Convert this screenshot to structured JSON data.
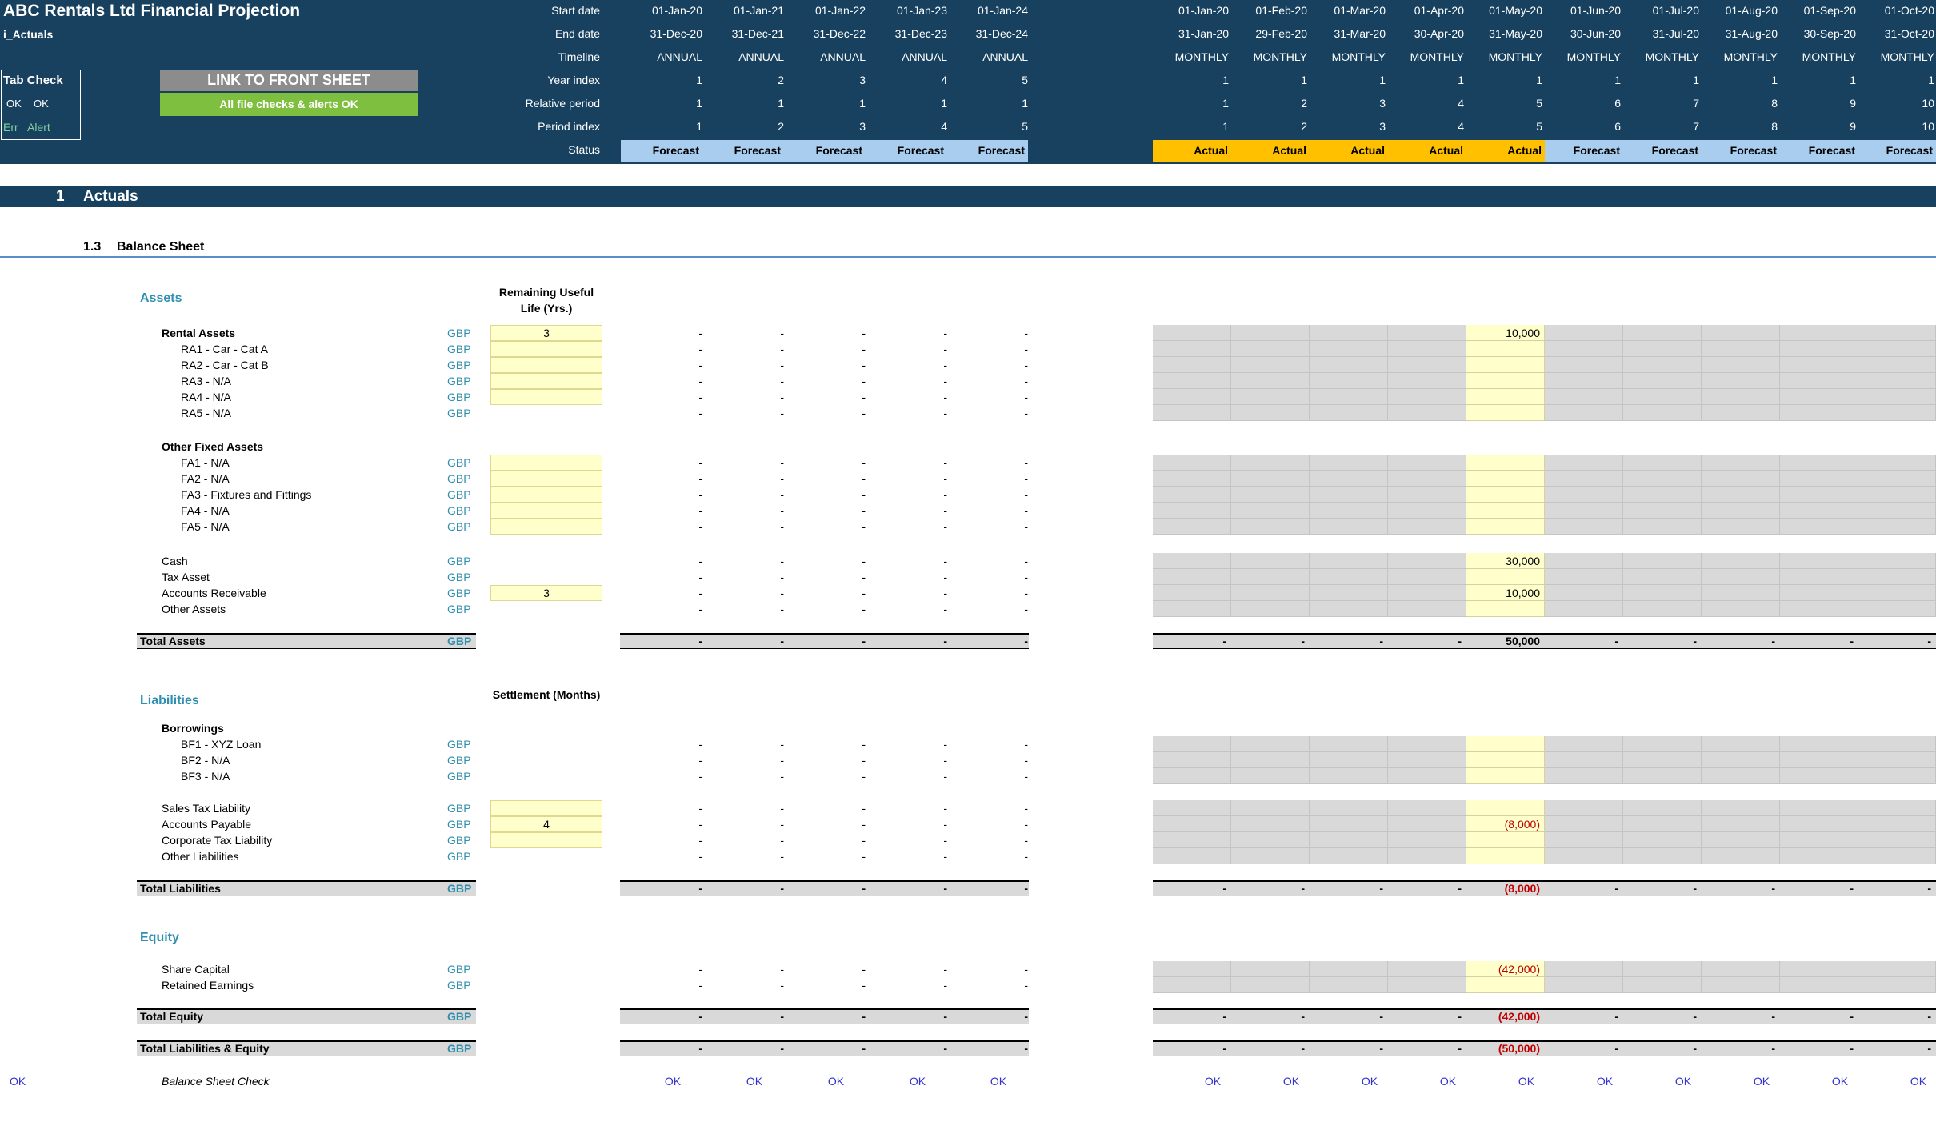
{
  "header": {
    "title": "ABC  Rentals Ltd Financial Projection",
    "sheet": "i_Actuals",
    "tab_check": "Tab Check",
    "tab_check_ok1": "OK",
    "tab_check_ok2": "OK",
    "tab_check_err": "Err",
    "tab_check_alert": "Alert",
    "link_button": "LINK TO FRONT SHEET",
    "checks_button": "All file checks & alerts OK",
    "row_labels": [
      "Start date",
      "End date",
      "Timeline",
      "Year index",
      "Relative period",
      "Period index",
      "Status"
    ]
  },
  "annual": {
    "start": [
      "01-Jan-20",
      "01-Jan-21",
      "01-Jan-22",
      "01-Jan-23",
      "01-Jan-24"
    ],
    "end": [
      "31-Dec-20",
      "31-Dec-21",
      "31-Dec-22",
      "31-Dec-23",
      "31-Dec-24"
    ],
    "timeline": [
      "ANNUAL",
      "ANNUAL",
      "ANNUAL",
      "ANNUAL",
      "ANNUAL"
    ],
    "year_index": [
      "1",
      "2",
      "3",
      "4",
      "5"
    ],
    "relative_period": [
      "1",
      "1",
      "1",
      "1",
      "1"
    ],
    "period_index": [
      "1",
      "2",
      "3",
      "4",
      "5"
    ],
    "status": [
      "Forecast",
      "Forecast",
      "Forecast",
      "Forecast",
      "Forecast"
    ]
  },
  "monthly": {
    "start": [
      "01-Jan-20",
      "01-Feb-20",
      "01-Mar-20",
      "01-Apr-20",
      "01-May-20",
      "01-Jun-20",
      "01-Jul-20",
      "01-Aug-20",
      "01-Sep-20",
      "01-Oct-20"
    ],
    "end": [
      "31-Jan-20",
      "29-Feb-20",
      "31-Mar-20",
      "30-Apr-20",
      "31-May-20",
      "30-Jun-20",
      "31-Jul-20",
      "31-Aug-20",
      "30-Sep-20",
      "31-Oct-20"
    ],
    "timeline": [
      "MONTHLY",
      "MONTHLY",
      "MONTHLY",
      "MONTHLY",
      "MONTHLY",
      "MONTHLY",
      "MONTHLY",
      "MONTHLY",
      "MONTHLY",
      "MONTHLY"
    ],
    "year_index": [
      "1",
      "1",
      "1",
      "1",
      "1",
      "1",
      "1",
      "1",
      "1",
      "1"
    ],
    "relative_period": [
      "1",
      "2",
      "3",
      "4",
      "5",
      "6",
      "7",
      "8",
      "9",
      "10"
    ],
    "period_index": [
      "1",
      "2",
      "3",
      "4",
      "5",
      "6",
      "7",
      "8",
      "9",
      "10"
    ],
    "status": [
      "Actual",
      "Actual",
      "Actual",
      "Actual",
      "Actual",
      "Forecast",
      "Forecast",
      "Forecast",
      "Forecast",
      "Forecast"
    ]
  },
  "section": {
    "number": "1",
    "title": "Actuals"
  },
  "subsection": {
    "number": "1.3",
    "title": "Balance Sheet"
  },
  "colors": {
    "header_bg": "#17415f",
    "forecast": "#a8cdef",
    "actual": "#ffc000",
    "input": "#ffffcc",
    "teal": "#2e8faf"
  },
  "units": "GBP",
  "dash": "-",
  "assets": {
    "heading": "Assets",
    "col_head": "Remaining Useful Life (Yrs.)",
    "rental_assets": {
      "label": "Rental Assets",
      "life": "3",
      "may": "10,000"
    },
    "rental_items": [
      "RA1 - Car - Cat A",
      "RA2 - Car - Cat B",
      "RA3 - N/A",
      "RA4 - N/A",
      "RA5 - N/A"
    ],
    "other_fixed_heading": "Other Fixed Assets",
    "fixed_items": [
      "FA1 - N/A",
      "FA2 - N/A",
      "FA3 - Fixtures and Fittings",
      "FA4 - N/A",
      "FA5 - N/A"
    ],
    "cash": {
      "label": "Cash",
      "may": "30,000"
    },
    "tax_asset": {
      "label": "Tax Asset"
    },
    "receivable": {
      "label": "Accounts Receivable",
      "life": "3",
      "may": "10,000"
    },
    "other_assets": {
      "label": "Other Assets"
    },
    "total": {
      "label": "Total Assets",
      "may": "50,000"
    }
  },
  "liabilities": {
    "heading": "Liabilities",
    "col_head": "Settlement (Months)",
    "borrowings_heading": "Borrowings",
    "borrow_items": [
      "BF1 - XYZ Loan",
      "BF2 - N/A",
      "BF3 - N/A"
    ],
    "sales_tax": {
      "label": "Sales Tax Liability"
    },
    "payable": {
      "label": "Accounts Payable",
      "settle": "4",
      "may": "(8,000)"
    },
    "corp_tax": {
      "label": "Corporate Tax Liability"
    },
    "other": {
      "label": "Other Liabilities"
    },
    "total": {
      "label": "Total Liabilities",
      "may": "(8,000)"
    }
  },
  "equity": {
    "heading": "Equity",
    "share_capital": {
      "label": "Share Capital",
      "may": "(42,000)"
    },
    "retained": {
      "label": "Retained Earnings"
    },
    "total": {
      "label": "Total Equity",
      "may": "(42,000)"
    }
  },
  "total_le": {
    "label": "Total Liabilities & Equity",
    "may": "(50,000)"
  },
  "check": {
    "left": "OK",
    "label": "Balance Sheet Check",
    "value": "OK"
  }
}
